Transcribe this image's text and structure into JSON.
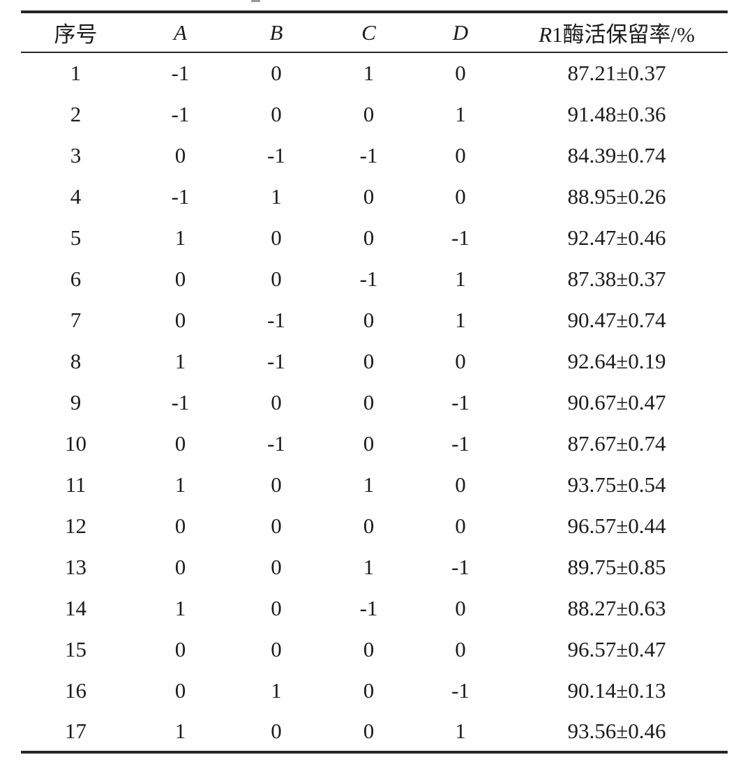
{
  "table": {
    "header": {
      "col_index": "序号",
      "col_a": "A",
      "col_b": "B",
      "col_c": "C",
      "col_d": "D",
      "col_result_italic": "R",
      "col_result_rest": "1酶活保留率/%"
    },
    "rows": [
      [
        "1",
        "-1",
        "0",
        "1",
        "0",
        "87.21±0.37"
      ],
      [
        "2",
        "-1",
        "0",
        "0",
        "1",
        "91.48±0.36"
      ],
      [
        "3",
        "0",
        "-1",
        "-1",
        "0",
        "84.39±0.74"
      ],
      [
        "4",
        "-1",
        "1",
        "0",
        "0",
        "88.95±0.26"
      ],
      [
        "5",
        "1",
        "0",
        "0",
        "-1",
        "92.47±0.46"
      ],
      [
        "6",
        "0",
        "0",
        "-1",
        "1",
        "87.38±0.37"
      ],
      [
        "7",
        "0",
        "-1",
        "0",
        "1",
        "90.47±0.74"
      ],
      [
        "8",
        "1",
        "-1",
        "0",
        "0",
        "92.64±0.19"
      ],
      [
        "9",
        "-1",
        "0",
        "0",
        "-1",
        "90.67±0.47"
      ],
      [
        "10",
        "0",
        "-1",
        "0",
        "-1",
        "87.67±0.74"
      ],
      [
        "11",
        "1",
        "0",
        "1",
        "0",
        "93.75±0.54"
      ],
      [
        "12",
        "0",
        "0",
        "0",
        "0",
        "96.57±0.44"
      ],
      [
        "13",
        "0",
        "0",
        "1",
        "-1",
        "89.75±0.85"
      ],
      [
        "14",
        "1",
        "0",
        "-1",
        "0",
        "88.27±0.63"
      ],
      [
        "15",
        "0",
        "0",
        "0",
        "0",
        "96.57±0.47"
      ],
      [
        "16",
        "0",
        "1",
        "0",
        "-1",
        "90.14±0.13"
      ],
      [
        "17",
        "1",
        "0",
        "0",
        "1",
        "93.56±0.46"
      ]
    ]
  }
}
